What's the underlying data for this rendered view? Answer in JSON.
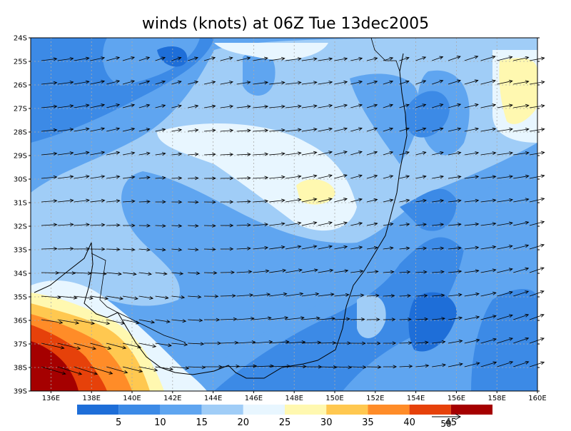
{
  "title": "winds (knots) at 06Z Tue 13dec2005",
  "map": {
    "lonlim": [
      135,
      160
    ],
    "latlim": [
      -39,
      -24
    ],
    "lat_ticks": [
      {
        "value": -24,
        "label": "24S"
      },
      {
        "value": -25,
        "label": "25S"
      },
      {
        "value": -26,
        "label": "26S"
      },
      {
        "value": -27,
        "label": "27S"
      },
      {
        "value": -28,
        "label": "28S"
      },
      {
        "value": -29,
        "label": "29S"
      },
      {
        "value": -30,
        "label": "30S"
      },
      {
        "value": -31,
        "label": "31S"
      },
      {
        "value": -32,
        "label": "32S"
      },
      {
        "value": -33,
        "label": "33S"
      },
      {
        "value": -34,
        "label": "34S"
      },
      {
        "value": -35,
        "label": "35S"
      },
      {
        "value": -36,
        "label": "36S"
      },
      {
        "value": -37,
        "label": "37S"
      },
      {
        "value": -38,
        "label": "38S"
      },
      {
        "value": -39,
        "label": "39S"
      }
    ],
    "lon_ticks": [
      {
        "value": 136,
        "label": "136E"
      },
      {
        "value": 138,
        "label": "138E"
      },
      {
        "value": 140,
        "label": "140E"
      },
      {
        "value": 142,
        "label": "142E"
      },
      {
        "value": 144,
        "label": "144E"
      },
      {
        "value": 146,
        "label": "146E"
      },
      {
        "value": 148,
        "label": "148E"
      },
      {
        "value": 150,
        "label": "150E"
      },
      {
        "value": 152,
        "label": "152E"
      },
      {
        "value": 154,
        "label": "154E"
      },
      {
        "value": 156,
        "label": "156E"
      },
      {
        "value": 158,
        "label": "158E"
      },
      {
        "value": 160,
        "label": "160E"
      }
    ],
    "grid": true
  },
  "colorbar": {
    "levels": [
      5,
      10,
      15,
      20,
      25,
      30,
      35,
      40,
      45
    ],
    "colors": [
      "#1e6ed8",
      "#3c8ae6",
      "#5fa5f0",
      "#a0cdf7",
      "#e8f6ff",
      "#fff8b0",
      "#ffc850",
      "#ff8c28",
      "#e6410a",
      "#a50000"
    ]
  },
  "reference_vector": 50
}
